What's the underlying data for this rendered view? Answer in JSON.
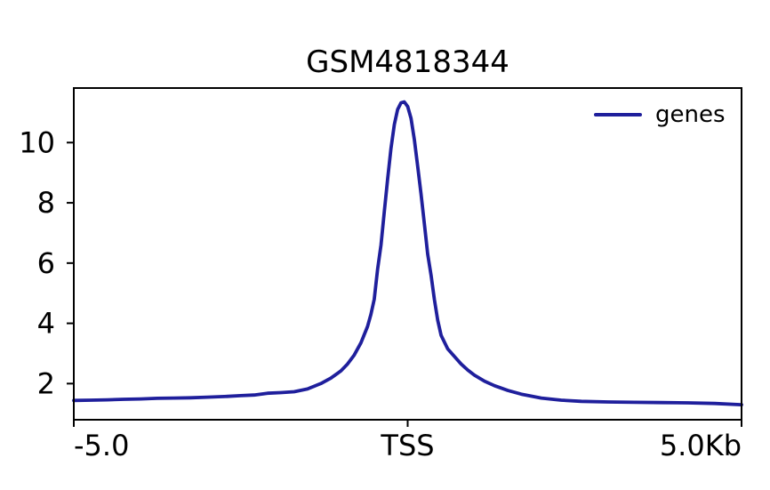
{
  "figure": {
    "background": "#ffffff",
    "spine_color": "#000000"
  },
  "legend": {
    "position": "upper-right",
    "items": [
      {
        "label": "genes",
        "color": "#1f1f9c"
      }
    ]
  },
  "chart_data": {
    "type": "line",
    "title": "GSM4818344",
    "xlabel": "",
    "ylabel": "",
    "x_unit": "Kb",
    "reference_point": "TSS",
    "xlim": [
      -5.0,
      5.0
    ],
    "ylim": [
      0.8,
      11.81
    ],
    "grid": false,
    "legend_position": "upper right",
    "x_ticks": [
      {
        "pos": -5.0,
        "label": "-5.0",
        "align": "left"
      },
      {
        "pos": 0.0,
        "label": "TSS",
        "align": "center"
      },
      {
        "pos": 5.0,
        "label": "5.0Kb",
        "align": "right"
      }
    ],
    "y_ticks": [
      2,
      4,
      6,
      8,
      10
    ],
    "series": [
      {
        "name": "genes",
        "color": "#1f1f9c",
        "line_width": 3.8,
        "x": [
          -5.0,
          -4.75,
          -4.5,
          -4.25,
          -4.0,
          -3.75,
          -3.5,
          -3.25,
          -3.0,
          -2.75,
          -2.5,
          -2.3,
          -2.1,
          -1.9,
          -1.7,
          -1.5,
          -1.3,
          -1.15,
          -1.0,
          -0.9,
          -0.8,
          -0.7,
          -0.6,
          -0.55,
          -0.5,
          -0.45,
          -0.4,
          -0.35,
          -0.3,
          -0.25,
          -0.2,
          -0.15,
          -0.1,
          -0.05,
          0.0,
          0.05,
          0.1,
          0.15,
          0.2,
          0.25,
          0.3,
          0.35,
          0.4,
          0.45,
          0.5,
          0.6,
          0.7,
          0.8,
          0.9,
          1.0,
          1.15,
          1.3,
          1.5,
          1.7,
          2.0,
          2.3,
          2.6,
          3.0,
          3.4,
          3.8,
          4.2,
          4.6,
          5.0
        ],
        "y": [
          1.44,
          1.45,
          1.46,
          1.48,
          1.49,
          1.51,
          1.52,
          1.53,
          1.55,
          1.57,
          1.6,
          1.62,
          1.68,
          1.7,
          1.73,
          1.82,
          2.0,
          2.18,
          2.42,
          2.65,
          2.95,
          3.35,
          3.9,
          4.3,
          4.8,
          5.8,
          6.6,
          7.7,
          8.8,
          9.8,
          10.6,
          11.1,
          11.32,
          11.35,
          11.2,
          10.8,
          10.1,
          9.2,
          8.3,
          7.3,
          6.3,
          5.6,
          4.8,
          4.1,
          3.6,
          3.15,
          2.9,
          2.65,
          2.45,
          2.28,
          2.08,
          1.93,
          1.77,
          1.65,
          1.52,
          1.45,
          1.41,
          1.39,
          1.38,
          1.37,
          1.36,
          1.34,
          1.3
        ]
      }
    ]
  }
}
